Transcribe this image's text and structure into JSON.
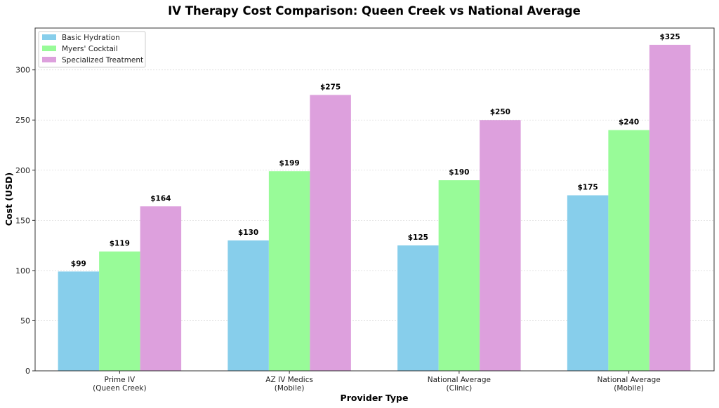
{
  "chart_data": {
    "type": "bar",
    "title": "IV Therapy Cost Comparison: Queen Creek vs National Average",
    "xlabel": "Provider Type",
    "ylabel": "Cost (USD)",
    "ylim": [
      0,
      341.7
    ],
    "yticks": [
      0,
      50,
      100,
      150,
      200,
      250,
      300
    ],
    "grid": true,
    "legend_position": "top-left",
    "categories": [
      [
        "Prime IV",
        "(Queen Creek)"
      ],
      [
        "AZ IV Medics",
        "(Mobile)"
      ],
      [
        "National Average",
        "(Clinic)"
      ],
      [
        "National Average",
        "(Mobile)"
      ]
    ],
    "series": [
      {
        "name": "Basic Hydration",
        "color": "#87ceeb",
        "values": [
          99,
          130,
          125,
          175
        ],
        "labels": [
          "$99",
          "$130",
          "$125",
          "$175"
        ]
      },
      {
        "name": "Myers' Cocktail",
        "color": "#98fb98",
        "values": [
          119,
          199,
          190,
          240
        ],
        "labels": [
          "$119",
          "$199",
          "$190",
          "$240"
        ]
      },
      {
        "name": "Specialized Treatment",
        "color": "#dda0dd",
        "values": [
          164,
          275,
          250,
          325
        ],
        "labels": [
          "$164",
          "$275",
          "$250",
          "$325"
        ]
      }
    ]
  }
}
